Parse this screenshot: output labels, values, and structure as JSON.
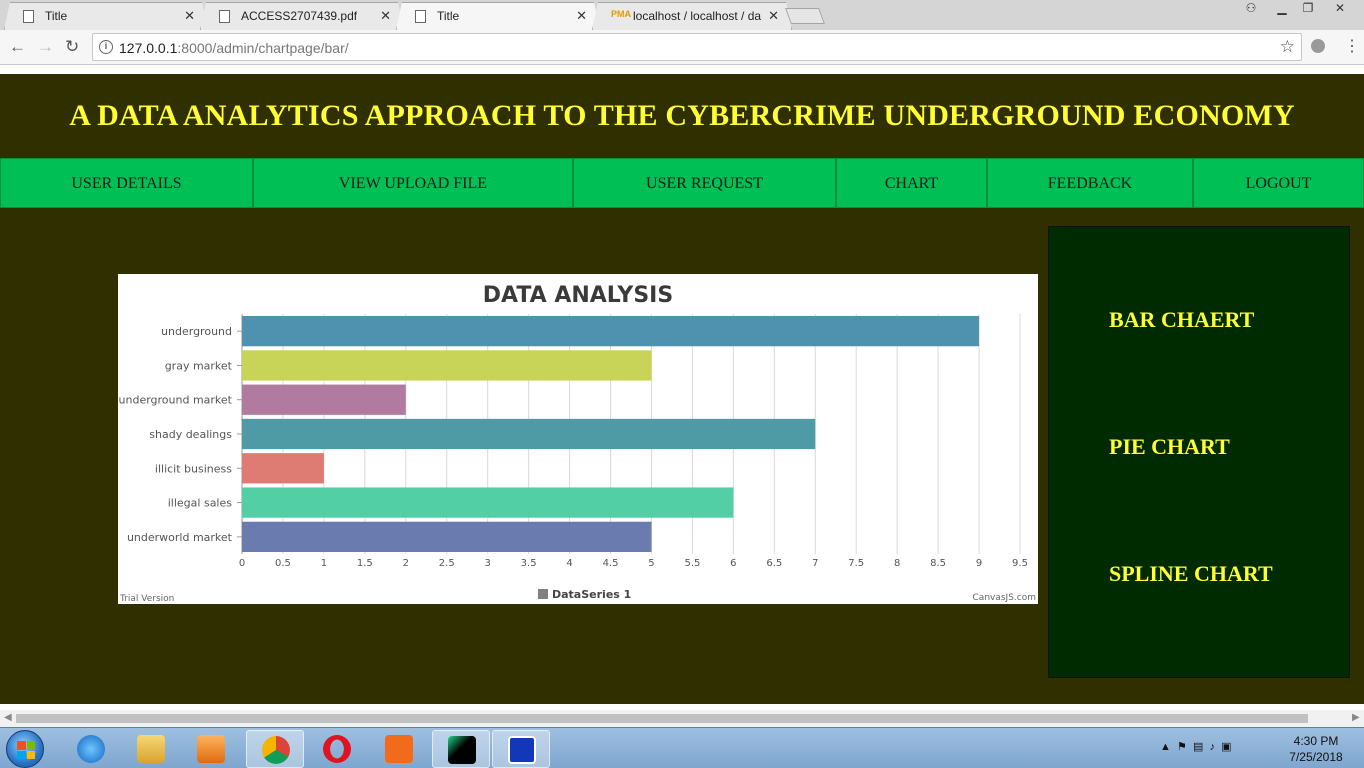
{
  "browser": {
    "tabs": [
      {
        "label": "Title"
      },
      {
        "label": "ACCESS2707439.pdf"
      },
      {
        "label": "Title"
      },
      {
        "label": "localhost / localhost / da"
      }
    ],
    "url_host": "127.0.0.1",
    "url_path": ":8000/admin/chartpage/bar/",
    "pma_badge": "PMA"
  },
  "header": {
    "title": "A DATA ANALYTICS APPROACH TO THE CYBERCRIME UNDERGROUND ECONOMY"
  },
  "nav": {
    "items": [
      {
        "label": "USER DETAILS"
      },
      {
        "label": "VIEW UPLOAD FILE"
      },
      {
        "label": "USER REQUEST"
      },
      {
        "label": "CHART"
      },
      {
        "label": "FEEDBACK"
      },
      {
        "label": "LOGOUT"
      }
    ]
  },
  "sidebar": {
    "links": [
      {
        "label": "BAR CHAERT"
      },
      {
        "label": "PIE CHART"
      },
      {
        "label": "SPLINE CHART"
      }
    ]
  },
  "chart_data": {
    "type": "bar",
    "orientation": "horizontal",
    "title": "DATA ANALYSIS",
    "categories": [
      "underground",
      "gray market",
      "underground market",
      "shady dealings",
      "illicit business",
      "illegal sales",
      "underworld market"
    ],
    "values": [
      9,
      5,
      2,
      7,
      1,
      6,
      5
    ],
    "colors": [
      "#4f92af",
      "#c8d457",
      "#b07b9f",
      "#4e9ba5",
      "#de7b73",
      "#52cfa5",
      "#6a7bb0"
    ],
    "xlim": [
      0,
      9.5
    ],
    "xticks": [
      "0",
      "0.5",
      "1",
      "1.5",
      "2",
      "2.5",
      "3",
      "3.5",
      "4",
      "4.5",
      "5",
      "5.5",
      "6",
      "6.5",
      "7",
      "7.5",
      "8",
      "8.5",
      "9",
      "9.5"
    ],
    "grid": true,
    "legend": "bottom-center",
    "legend_label": "DataSeries 1",
    "watermark_left": "Trial Version",
    "watermark_right": "CanvasJS.com"
  },
  "taskbar": {
    "time": "4:30 PM",
    "date": "7/25/2018",
    "colors": {
      "bar": "#8fb3da"
    }
  }
}
